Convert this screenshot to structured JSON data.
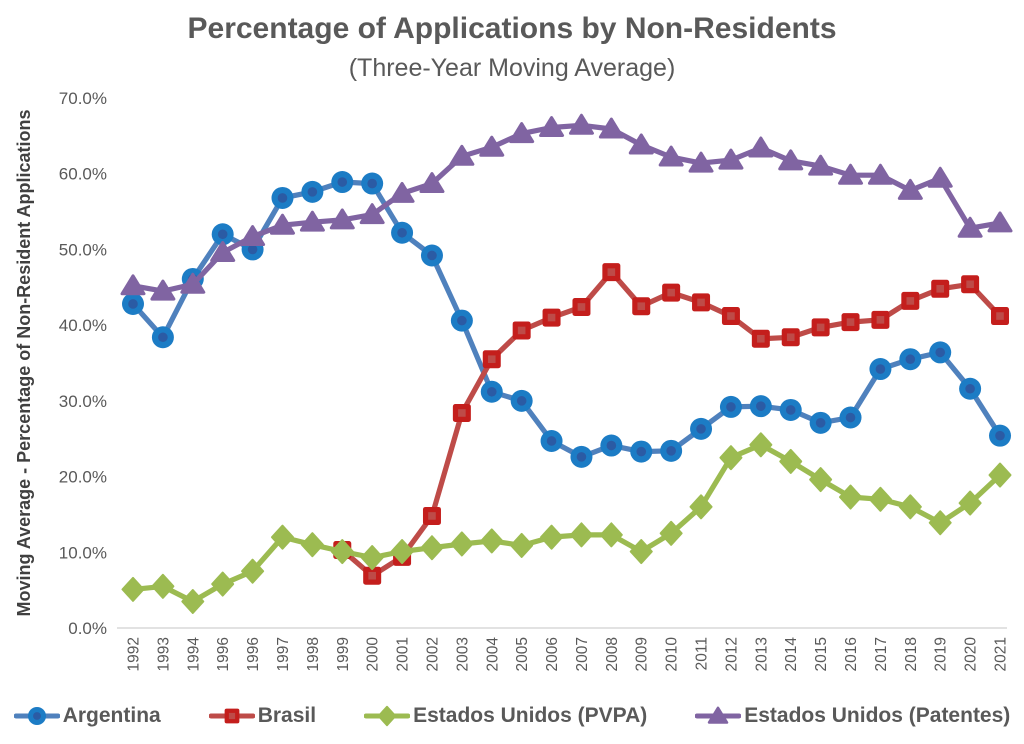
{
  "header": {
    "title": "Percentage of Applications by Non-Residents",
    "subtitle": "(Three-Year Moving Average)"
  },
  "y_axis": {
    "label": "Moving Average - Percentage of Non-Resident Applications",
    "tick_labels": [
      "0.0%",
      "10.0%",
      "20.0%",
      "30.0%",
      "40.0%",
      "50.0%",
      "60.0%",
      "70.0%"
    ]
  },
  "colors": {
    "axis_line": "#D9D9D9",
    "text": "#595959"
  },
  "chart_data": {
    "type": "line",
    "title": "Percentage of Applications by Non-Residents",
    "subtitle": "(Three-Year Moving Average)",
    "xlabel": "",
    "ylabel": "Moving Average - Percentage of Non-Resident Applications",
    "ylim": [
      0,
      70
    ],
    "y_tick_step": 10,
    "grid": false,
    "legend_position": "bottom",
    "categories": [
      "1992",
      "1993",
      "1994",
      "1996",
      "1996",
      "1997",
      "1998",
      "1999",
      "2000",
      "2001",
      "2002",
      "2003",
      "2004",
      "2005",
      "2006",
      "2007",
      "2008",
      "2009",
      "2010",
      "2011",
      "2012",
      "2013",
      "2014",
      "2015",
      "2016",
      "2017",
      "2018",
      "2019",
      "2020",
      "2021"
    ],
    "series": [
      {
        "name": "Argentina",
        "marker": "circle",
        "color": "#4F81BD",
        "marker_fill": "#1C7CC5",
        "marker_inner": "#2B5BA4",
        "values": [
          42.8,
          38.4,
          46.1,
          52.0,
          50.0,
          56.8,
          57.6,
          58.9,
          58.7,
          52.2,
          49.2,
          40.6,
          31.2,
          30.0,
          24.7,
          22.6,
          24.1,
          23.3,
          23.4,
          26.3,
          29.2,
          29.3,
          28.8,
          27.1,
          27.8,
          34.2,
          35.5,
          36.4,
          31.6,
          25.4
        ]
      },
      {
        "name": "Brasil",
        "marker": "square",
        "color": "#BE4B48",
        "marker_fill": "#C41E1C",
        "marker_inner": "#BE4B48",
        "values": [
          null,
          null,
          null,
          null,
          null,
          null,
          null,
          10.3,
          6.9,
          9.4,
          14.8,
          28.4,
          35.5,
          39.3,
          41.0,
          42.4,
          47.0,
          42.5,
          44.3,
          43.0,
          41.2,
          38.2,
          38.4,
          39.7,
          40.4,
          40.7,
          43.2,
          44.8,
          45.4,
          41.2
        ]
      },
      {
        "name": "Estados Unidos (PVPA)",
        "marker": "diamond",
        "color": "#9CBB51",
        "marker_fill": "#9CBB51",
        "marker_inner": "#9CBB51",
        "values": [
          5.1,
          5.5,
          3.5,
          5.8,
          7.5,
          12.0,
          11.0,
          10.1,
          9.3,
          10.1,
          10.6,
          11.1,
          11.5,
          10.9,
          12.0,
          12.3,
          12.3,
          10.1,
          12.5,
          16.0,
          22.5,
          24.2,
          22.0,
          19.6,
          17.3,
          17.0,
          16.0,
          13.9,
          16.5,
          20.2
        ]
      },
      {
        "name": "Estados Unidos (Patentes)",
        "marker": "triangle",
        "color": "#8064A2",
        "marker_fill": "#8064A2",
        "marker_inner": "#8064A2",
        "values": [
          45.2,
          44.5,
          45.4,
          49.6,
          51.7,
          53.2,
          53.6,
          53.9,
          54.6,
          57.4,
          58.7,
          62.3,
          63.5,
          65.3,
          66.1,
          66.4,
          65.9,
          63.8,
          62.2,
          61.4,
          61.8,
          63.4,
          61.7,
          61.0,
          59.8,
          59.8,
          57.8,
          59.4,
          52.8,
          53.5
        ]
      }
    ]
  }
}
